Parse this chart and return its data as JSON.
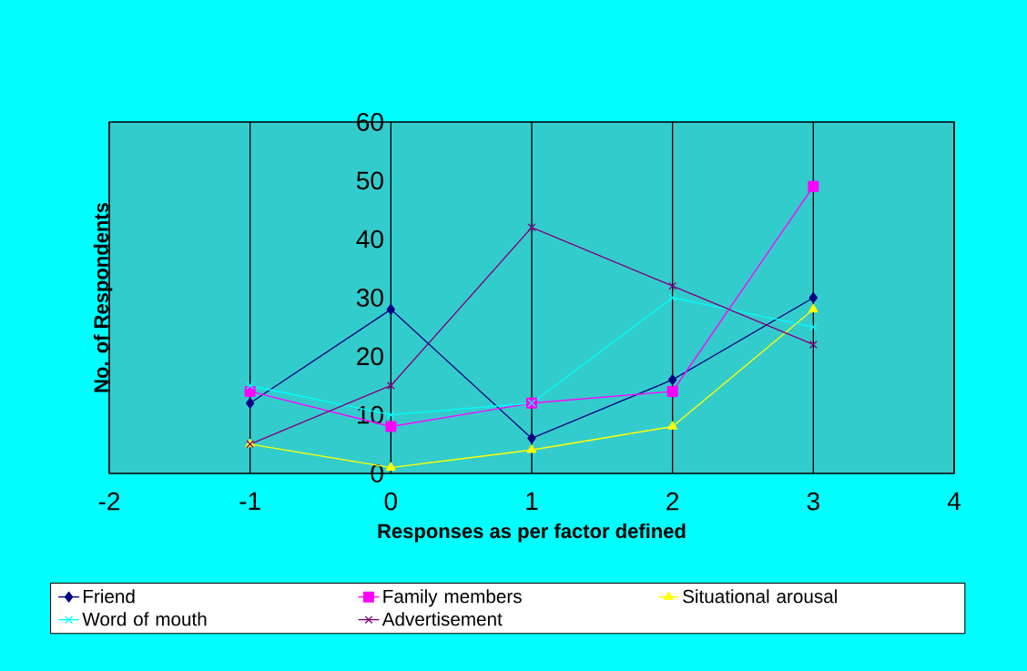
{
  "chart_data": {
    "type": "line",
    "xlabel": "Responses as per factor defined",
    "ylabel": "No. of Respondents",
    "x": [
      -1,
      0,
      1,
      2,
      3
    ],
    "series": [
      {
        "name": "Friend",
        "color": "#000080",
        "marker": "diamond",
        "values": [
          12,
          28,
          6,
          16,
          30
        ]
      },
      {
        "name": "Family members",
        "color": "#ff00ff",
        "marker": "square",
        "values": [
          14,
          8,
          12,
          14,
          49
        ]
      },
      {
        "name": "Situational arousal",
        "color": "#ffff00",
        "marker": "triangle",
        "values": [
          5,
          1,
          4,
          8,
          28
        ]
      },
      {
        "name": "Word of mouth",
        "color": "#00ffff",
        "marker": "cross",
        "values": [
          15,
          10,
          12,
          30,
          25
        ]
      },
      {
        "name": "Advertisement",
        "color": "#800080",
        "marker": "cross",
        "values": [
          5,
          15,
          42,
          32,
          22
        ]
      }
    ],
    "xlim": [
      -2,
      4
    ],
    "xticks": [
      -2,
      -1,
      0,
      1,
      2,
      3,
      4
    ],
    "ylim": [
      0,
      60
    ],
    "yticks": [
      0,
      10,
      20,
      30,
      40,
      50,
      60
    ],
    "grid": "x",
    "legend": "bottom",
    "line_style": "solid"
  }
}
